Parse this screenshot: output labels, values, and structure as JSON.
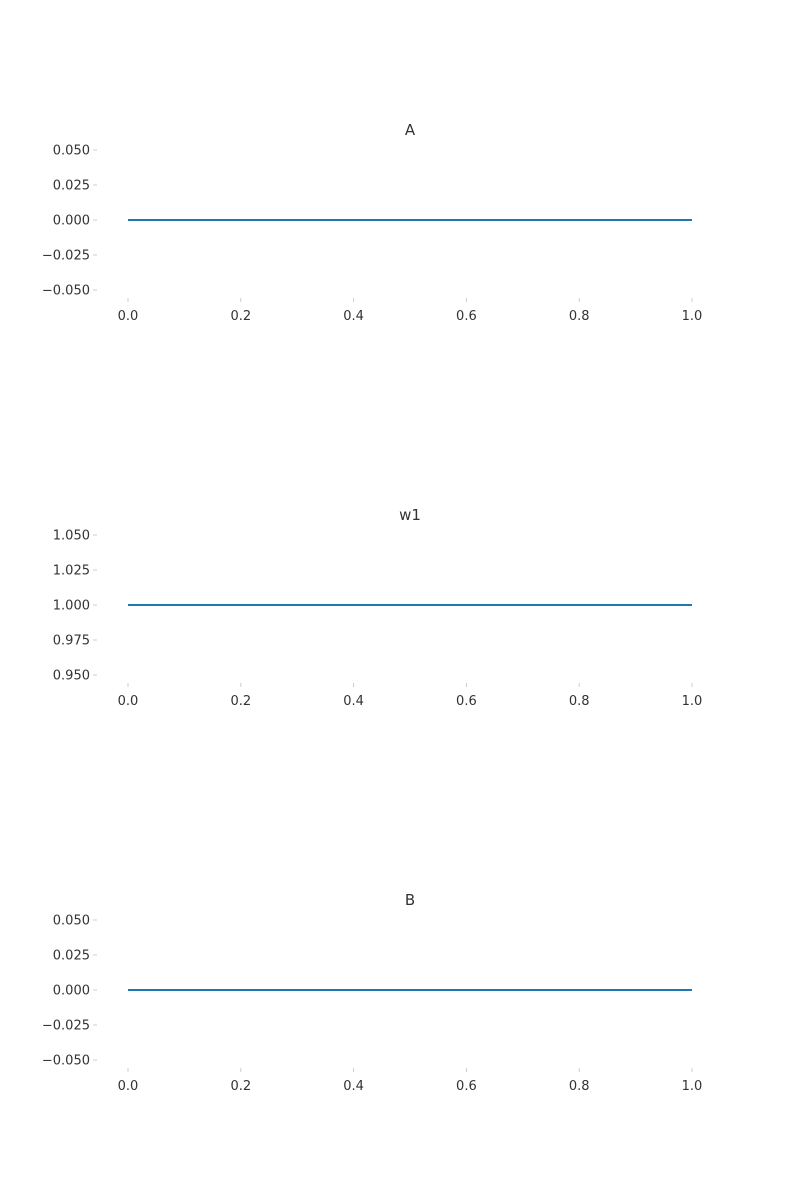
{
  "chart_data": [
    {
      "type": "line",
      "title": "A",
      "xlabel": "",
      "ylabel": "",
      "xlim": [
        0.0,
        1.0
      ],
      "ylim": [
        -0.05,
        0.05
      ],
      "x_ticks": [
        "0.0",
        "0.2",
        "0.4",
        "0.6",
        "0.8",
        "1.0"
      ],
      "y_ticks": [
        "0.050",
        "0.025",
        "0.000",
        "−0.025",
        "−0.050"
      ],
      "series": [
        {
          "x": [
            0.0,
            1.0
          ],
          "y": [
            0.0,
            0.0
          ]
        }
      ],
      "grid": false
    },
    {
      "type": "line",
      "title": "w1",
      "xlabel": "",
      "ylabel": "",
      "xlim": [
        0.0,
        1.0
      ],
      "ylim": [
        0.95,
        1.05
      ],
      "x_ticks": [
        "0.0",
        "0.2",
        "0.4",
        "0.6",
        "0.8",
        "1.0"
      ],
      "y_ticks": [
        "1.050",
        "1.025",
        "1.000",
        "0.975",
        "0.950"
      ],
      "series": [
        {
          "x": [
            0.0,
            1.0
          ],
          "y": [
            1.0,
            1.0
          ]
        }
      ],
      "grid": false
    },
    {
      "type": "line",
      "title": "B",
      "xlabel": "",
      "ylabel": "",
      "xlim": [
        0.0,
        1.0
      ],
      "ylim": [
        -0.05,
        0.05
      ],
      "x_ticks": [
        "0.0",
        "0.2",
        "0.4",
        "0.6",
        "0.8",
        "1.0"
      ],
      "y_ticks": [
        "0.050",
        "0.025",
        "0.000",
        "−0.025",
        "−0.050"
      ],
      "series": [
        {
          "x": [
            0.0,
            1.0
          ],
          "y": [
            0.0,
            0.0
          ]
        }
      ],
      "grid": false
    }
  ],
  "colors": {
    "line": "#1f77b4",
    "text": "#333333",
    "ticks": "#cccccc"
  }
}
